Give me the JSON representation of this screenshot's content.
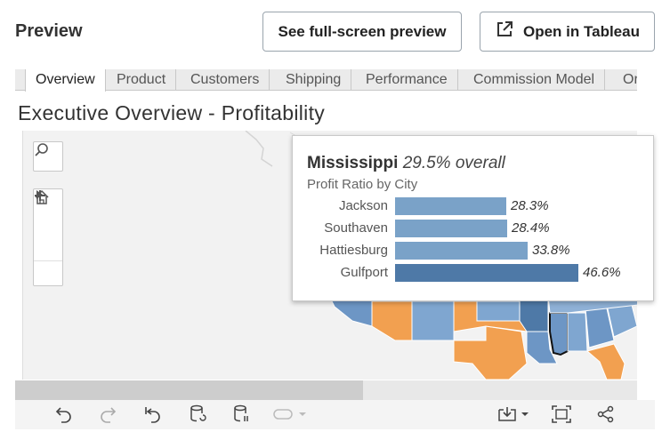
{
  "header": {
    "title": "Preview",
    "fullscreen_label": "See full-screen preview",
    "open_label": "Open in Tableau"
  },
  "tabs": [
    "Overview",
    "Product",
    "Customers",
    "Shipping",
    "Performance",
    "Commission Model",
    "Or"
  ],
  "dashboard": {
    "title": "Executive Overview - Profitability"
  },
  "map_controls": [
    "search-icon",
    "zoom-in-icon",
    "zoom-out-icon",
    "home-icon",
    "play-icon"
  ],
  "tooltip": {
    "state": "Mississippi",
    "overall": "29.5% overall",
    "subtitle": "Profit Ratio by City",
    "rows": [
      {
        "city": "Jackson",
        "value_label": "28.3%",
        "value": 28.3
      },
      {
        "city": "Southaven",
        "value_label": "28.4%",
        "value": 28.4
      },
      {
        "city": "Hattiesburg",
        "value_label": "33.8%",
        "value": 33.8
      },
      {
        "city": "Gulfport",
        "value_label": "46.6%",
        "value": 46.6
      }
    ],
    "bar_color": "#7aa2c8",
    "bar_color_max": "#4e79a7"
  },
  "colors": {
    "profit_blue": "#6d96c5",
    "profit_orange": "#f2a050",
    "profit_dark_blue": "#4e79a7",
    "background": "#f2f2f2"
  },
  "toolbar_icons": [
    "undo-icon",
    "redo-icon",
    "revert-icon",
    "refresh-data-icon",
    "pause-updates-icon",
    "toggle-icon",
    "download-icon",
    "fullscreen-icon",
    "share-icon"
  ]
}
